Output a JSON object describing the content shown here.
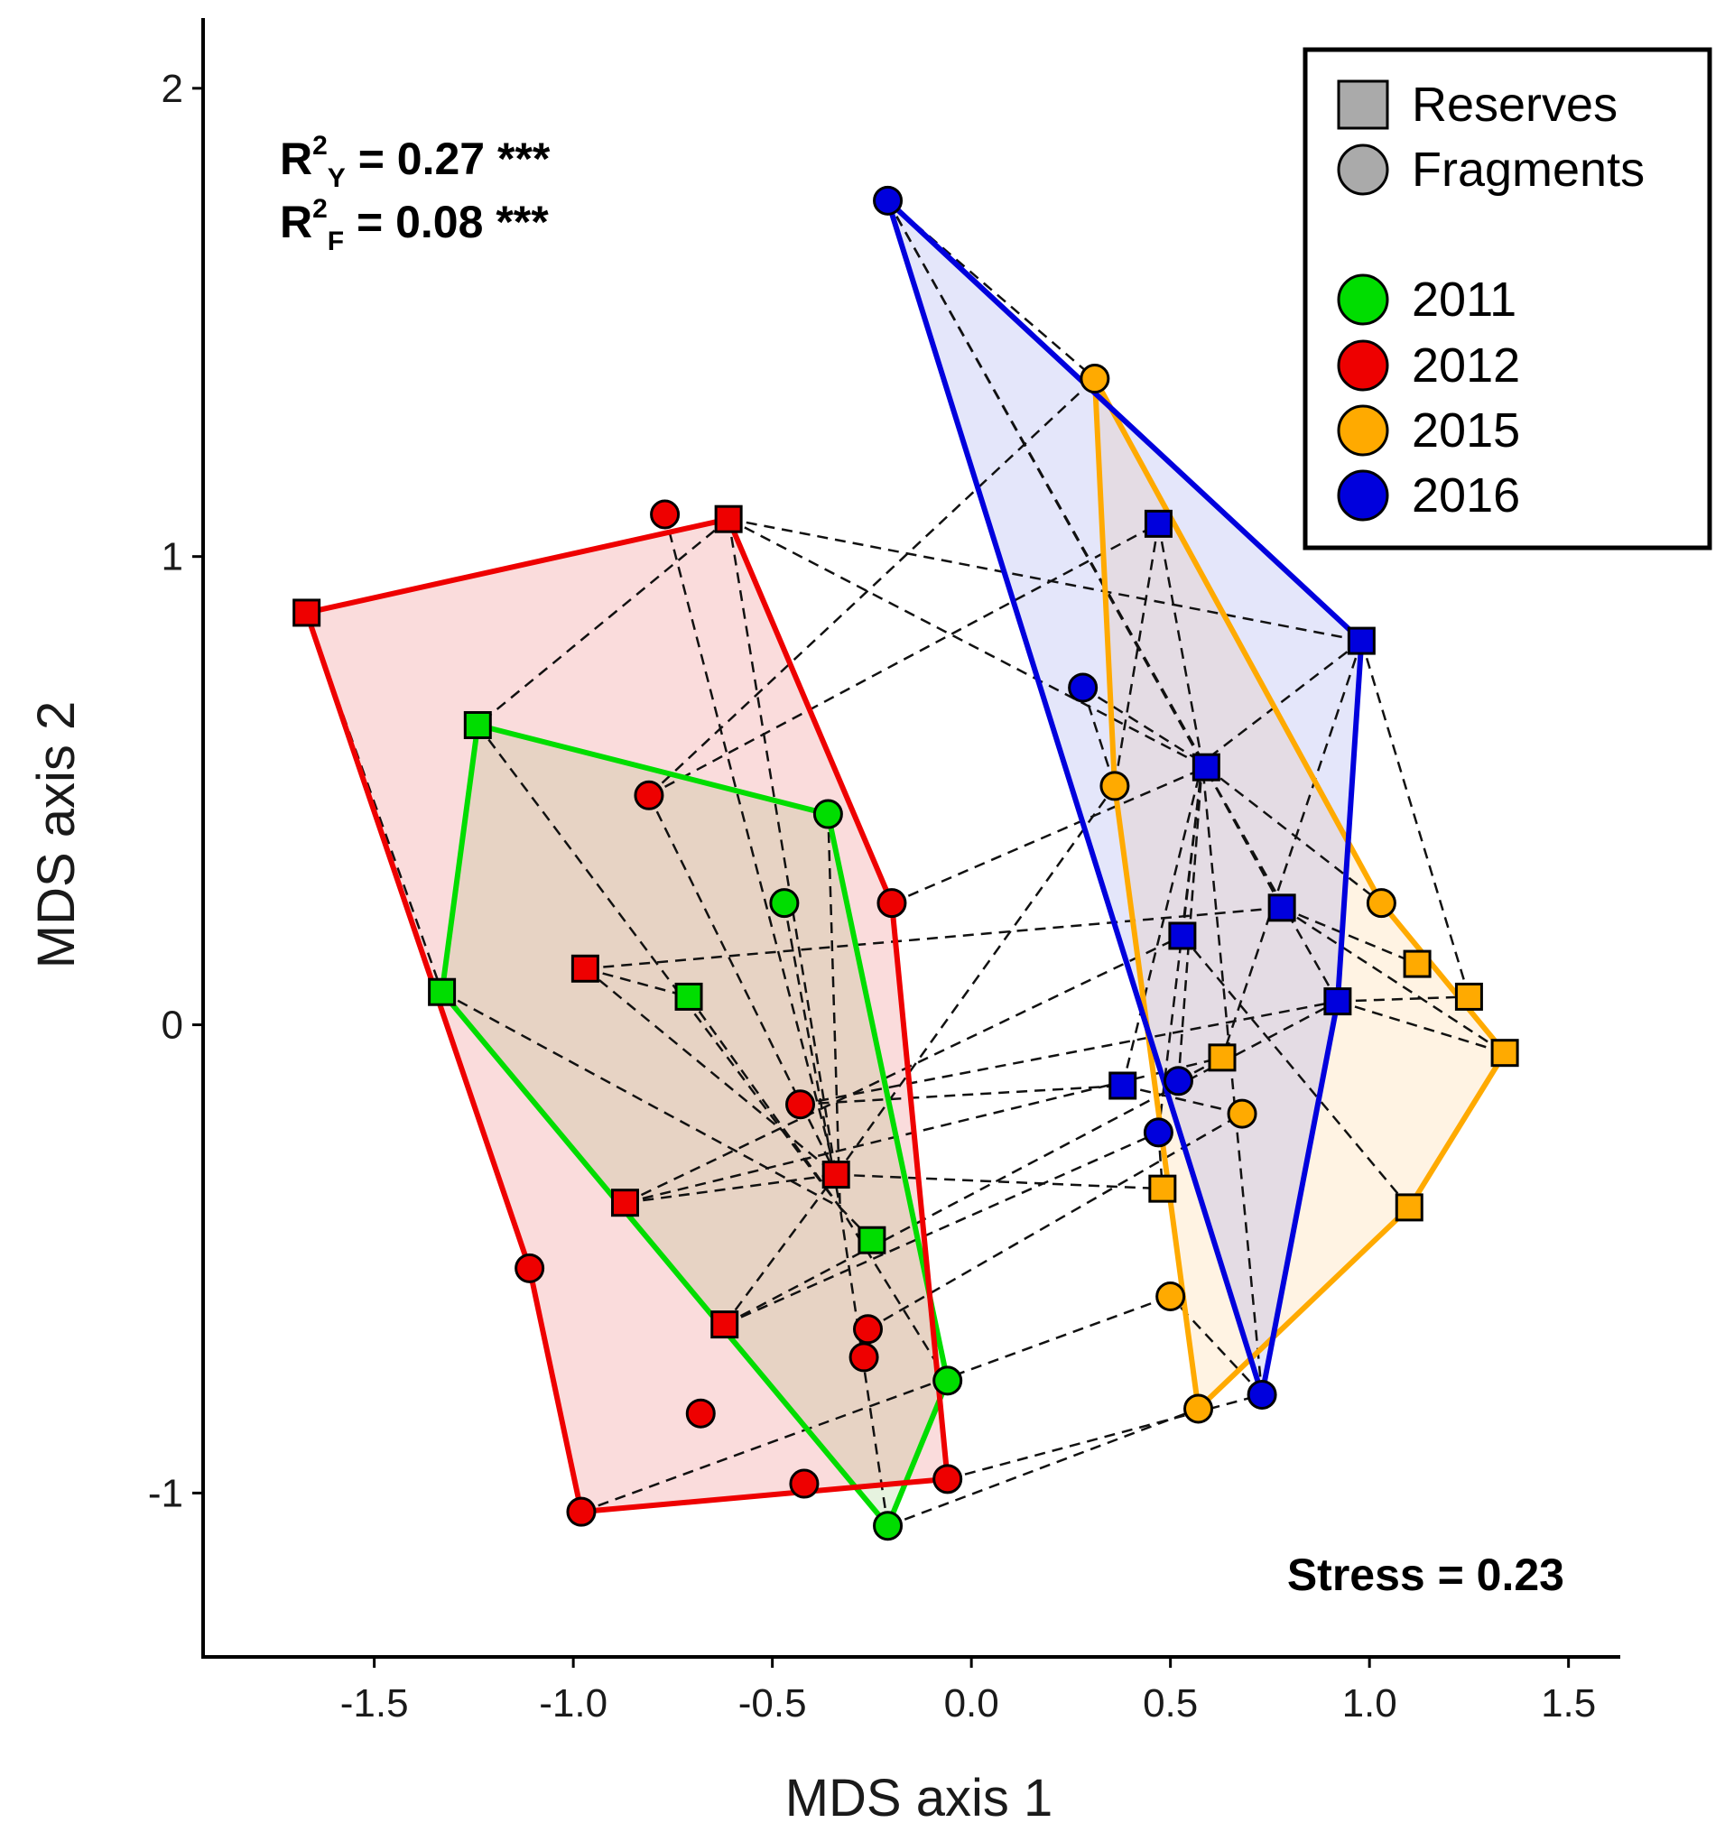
{
  "chart_data": {
    "type": "scatter",
    "xlabel": "MDS axis 1",
    "ylabel": "MDS axis 2",
    "xlim": [
      -1.93,
      1.63
    ],
    "ylim": [
      -1.35,
      2.15
    ],
    "xticks": [
      -1.5,
      -1.0,
      -0.5,
      0.0,
      0.5,
      1.0,
      1.5
    ],
    "xtick_labels": [
      "-1.5",
      "-1.0",
      "-0.5",
      "0.0",
      "0.5",
      "1.0",
      "1.5"
    ],
    "yticks": [
      -1,
      0,
      1,
      2
    ],
    "ytick_labels": [
      "-1",
      "0",
      "1",
      "2"
    ],
    "annotations": {
      "r2y": {
        "base": "R",
        "sup": "2",
        "sub": "Y",
        "rest": " = 0.27 ***"
      },
      "r2f": {
        "base": "R",
        "sup": "2",
        "sub": "F",
        "rest": " = 0.08 ***"
      },
      "stress": "Stress = 0.23"
    },
    "legend": {
      "position": "top-right",
      "shapes": [
        {
          "shape": "square",
          "label": "Reserves"
        },
        {
          "shape": "circle",
          "label": "Fragments"
        }
      ],
      "years": [
        {
          "label": "2011",
          "color": "#00dd00"
        },
        {
          "label": "2012",
          "color": "#ee0000"
        },
        {
          "label": "2015",
          "color": "#ffaa00"
        },
        {
          "label": "2016",
          "color": "#0000dd"
        }
      ]
    },
    "series": [
      {
        "name": "2011",
        "color": "#00dd00",
        "fill": "rgba(140,200,110,0.22)",
        "points": [
          {
            "x": -1.24,
            "y": 0.64,
            "shape": "square"
          },
          {
            "x": -1.33,
            "y": 0.07,
            "shape": "square"
          },
          {
            "x": -0.71,
            "y": 0.06,
            "shape": "square"
          },
          {
            "x": -0.25,
            "y": -0.46,
            "shape": "square"
          },
          {
            "x": -0.36,
            "y": 0.45,
            "shape": "circle"
          },
          {
            "x": -0.47,
            "y": 0.26,
            "shape": "circle"
          },
          {
            "x": -0.06,
            "y": -0.76,
            "shape": "circle"
          },
          {
            "x": -0.21,
            "y": -1.07,
            "shape": "circle"
          }
        ],
        "hull": [
          [
            -1.24,
            0.64
          ],
          [
            -1.33,
            0.07
          ],
          [
            -0.21,
            -1.07
          ],
          [
            -0.06,
            -0.76
          ],
          [
            -0.36,
            0.45
          ]
        ],
        "edges": [
          [
            [
              -1.24,
              0.64
            ],
            [
              -0.33,
              -0.39
            ]
          ],
          [
            [
              -1.33,
              0.07
            ],
            [
              -0.33,
              -0.39
            ]
          ],
          [
            [
              -0.71,
              0.06
            ],
            [
              -0.33,
              -0.39
            ]
          ],
          [
            [
              -0.25,
              -0.46
            ],
            [
              -0.33,
              -0.39
            ]
          ],
          [
            [
              -0.36,
              0.45
            ],
            [
              -0.33,
              -0.39
            ]
          ],
          [
            [
              -0.47,
              0.26
            ],
            [
              -0.33,
              -0.39
            ]
          ],
          [
            [
              -0.06,
              -0.76
            ],
            [
              -0.33,
              -0.39
            ]
          ],
          [
            [
              -0.21,
              -1.07
            ],
            [
              -0.33,
              -0.39
            ]
          ]
        ]
      },
      {
        "name": "2012",
        "color": "#ee0000",
        "fill": "rgba(235,120,120,0.26)",
        "points": [
          {
            "x": -1.67,
            "y": 0.88,
            "shape": "square"
          },
          {
            "x": -0.61,
            "y": 1.08,
            "shape": "square"
          },
          {
            "x": -0.97,
            "y": 0.12,
            "shape": "square"
          },
          {
            "x": -0.87,
            "y": -0.38,
            "shape": "square"
          },
          {
            "x": -0.34,
            "y": -0.32,
            "shape": "square"
          },
          {
            "x": -0.62,
            "y": -0.64,
            "shape": "square"
          },
          {
            "x": -0.77,
            "y": 1.09,
            "shape": "circle"
          },
          {
            "x": -0.81,
            "y": 0.49,
            "shape": "circle"
          },
          {
            "x": -0.2,
            "y": 0.26,
            "shape": "circle"
          },
          {
            "x": -0.43,
            "y": -0.17,
            "shape": "circle"
          },
          {
            "x": -1.11,
            "y": -0.52,
            "shape": "circle"
          },
          {
            "x": -0.26,
            "y": -0.65,
            "shape": "circle"
          },
          {
            "x": -0.27,
            "y": -0.71,
            "shape": "circle"
          },
          {
            "x": -0.68,
            "y": -0.83,
            "shape": "circle"
          },
          {
            "x": -0.42,
            "y": -0.98,
            "shape": "circle"
          },
          {
            "x": -0.06,
            "y": -0.97,
            "shape": "circle"
          },
          {
            "x": -0.98,
            "y": -1.04,
            "shape": "circle"
          }
        ],
        "hull": [
          [
            -1.67,
            0.88
          ],
          [
            -0.61,
            1.08
          ],
          [
            -0.2,
            0.26
          ],
          [
            -0.06,
            -0.97
          ],
          [
            -0.98,
            -1.04
          ],
          [
            -1.11,
            -0.52
          ]
        ],
        "edges": [
          [
            [
              -0.77,
              1.09
            ],
            [
              -0.34,
              -0.32
            ]
          ],
          [
            [
              -0.61,
              1.08
            ],
            [
              -0.34,
              -0.32
            ]
          ],
          [
            [
              -0.81,
              0.49
            ],
            [
              -0.34,
              -0.32
            ]
          ],
          [
            [
              -0.87,
              -0.38
            ],
            [
              -0.34,
              -0.32
            ]
          ],
          [
            [
              -0.97,
              0.12
            ],
            [
              -0.34,
              -0.32
            ]
          ],
          [
            [
              -0.62,
              -0.64
            ],
            [
              -0.34,
              -0.32
            ]
          ],
          [
            [
              -0.34,
              -0.32
            ],
            [
              -0.34,
              -0.32
            ]
          ]
        ]
      },
      {
        "name": "2015",
        "color": "#ffaa00",
        "fill": "rgba(255,205,140,0.24)",
        "points": [
          {
            "x": 0.63,
            "y": -0.07,
            "shape": "square"
          },
          {
            "x": 0.48,
            "y": -0.35,
            "shape": "square"
          },
          {
            "x": 1.1,
            "y": -0.39,
            "shape": "square"
          },
          {
            "x": 1.12,
            "y": 0.13,
            "shape": "square"
          },
          {
            "x": 1.25,
            "y": 0.06,
            "shape": "square"
          },
          {
            "x": 1.34,
            "y": -0.06,
            "shape": "square"
          },
          {
            "x": 0.31,
            "y": 1.38,
            "shape": "circle"
          },
          {
            "x": 0.36,
            "y": 0.51,
            "shape": "circle"
          },
          {
            "x": 1.03,
            "y": 0.26,
            "shape": "circle"
          },
          {
            "x": 0.68,
            "y": -0.19,
            "shape": "circle"
          },
          {
            "x": 0.5,
            "y": -0.58,
            "shape": "circle"
          },
          {
            "x": 0.57,
            "y": -0.82,
            "shape": "circle"
          }
        ],
        "hull": [
          [
            0.31,
            1.38
          ],
          [
            1.03,
            0.26
          ],
          [
            1.34,
            -0.06
          ],
          [
            1.1,
            -0.39
          ],
          [
            0.57,
            -0.82
          ],
          [
            0.36,
            0.51
          ]
        ],
        "edges": []
      },
      {
        "name": "2016",
        "color": "#0000dd",
        "fill": "rgba(130,140,230,0.22)",
        "points": [
          {
            "x": 0.47,
            "y": 1.07,
            "shape": "square"
          },
          {
            "x": 0.98,
            "y": 0.82,
            "shape": "square"
          },
          {
            "x": 0.59,
            "y": 0.55,
            "shape": "square"
          },
          {
            "x": 0.78,
            "y": 0.25,
            "shape": "square"
          },
          {
            "x": 0.53,
            "y": 0.19,
            "shape": "square"
          },
          {
            "x": 0.92,
            "y": 0.05,
            "shape": "square"
          },
          {
            "x": 0.38,
            "y": -0.13,
            "shape": "square"
          },
          {
            "x": -0.21,
            "y": 1.76,
            "shape": "circle"
          },
          {
            "x": 0.28,
            "y": 0.72,
            "shape": "circle"
          },
          {
            "x": 0.52,
            "y": -0.12,
            "shape": "circle"
          },
          {
            "x": 0.47,
            "y": -0.23,
            "shape": "circle"
          },
          {
            "x": 0.73,
            "y": -0.79,
            "shape": "circle"
          }
        ],
        "hull": [
          [
            -0.21,
            1.76
          ],
          [
            0.98,
            0.82
          ],
          [
            0.92,
            0.05
          ],
          [
            0.73,
            -0.79
          ]
        ],
        "edges": [
          [
            [
              -0.21,
              1.76
            ],
            [
              0.58,
              0.56
            ]
          ],
          [
            [
              0.47,
              1.07
            ],
            [
              0.58,
              0.56
            ]
          ],
          [
            [
              0.98,
              0.82
            ],
            [
              0.58,
              0.56
            ]
          ],
          [
            [
              0.28,
              0.72
            ],
            [
              0.58,
              0.56
            ]
          ],
          [
            [
              0.78,
              0.25
            ],
            [
              0.58,
              0.56
            ]
          ],
          [
            [
              0.53,
              0.19
            ],
            [
              0.58,
              0.56
            ]
          ],
          [
            [
              0.92,
              0.05
            ],
            [
              0.58,
              0.56
            ]
          ],
          [
            [
              0.38,
              -0.13
            ],
            [
              0.58,
              0.56
            ]
          ],
          [
            [
              0.52,
              -0.12
            ],
            [
              0.58,
              0.56
            ]
          ],
          [
            [
              0.47,
              -0.23
            ],
            [
              0.58,
              0.56
            ]
          ],
          [
            [
              0.73,
              -0.79
            ],
            [
              0.58,
              0.56
            ]
          ]
        ]
      }
    ],
    "connectors": [
      [
        [
          -1.67,
          0.88
        ],
        [
          -1.33,
          0.07
        ]
      ],
      [
        [
          -0.61,
          1.08
        ],
        [
          -1.24,
          0.64
        ]
      ],
      [
        [
          -0.61,
          1.08
        ],
        [
          0.59,
          0.55
        ]
      ],
      [
        [
          -0.61,
          1.08
        ],
        [
          0.98,
          0.82
        ]
      ],
      [
        [
          -0.81,
          0.49
        ],
        [
          0.31,
          1.38
        ]
      ],
      [
        [
          -0.81,
          0.49
        ],
        [
          0.47,
          1.07
        ]
      ],
      [
        [
          -0.97,
          0.12
        ],
        [
          -0.71,
          0.06
        ]
      ],
      [
        [
          -0.97,
          0.12
        ],
        [
          0.78,
          0.25
        ]
      ],
      [
        [
          -0.87,
          -0.38
        ],
        [
          0.53,
          0.19
        ]
      ],
      [
        [
          -0.87,
          -0.38
        ],
        [
          0.63,
          -0.07
        ]
      ],
      [
        [
          -0.43,
          -0.17
        ],
        [
          0.38,
          -0.13
        ]
      ],
      [
        [
          -0.43,
          -0.17
        ],
        [
          0.92,
          0.05
        ]
      ],
      [
        [
          -0.34,
          -0.32
        ],
        [
          0.36,
          0.51
        ]
      ],
      [
        [
          -0.34,
          -0.32
        ],
        [
          0.48,
          -0.35
        ]
      ],
      [
        [
          -0.62,
          -0.64
        ],
        [
          0.47,
          -0.23
        ]
      ],
      [
        [
          -0.62,
          -0.64
        ],
        [
          0.92,
          0.05
        ]
      ],
      [
        [
          -0.26,
          -0.65
        ],
        [
          0.68,
          -0.19
        ]
      ],
      [
        [
          -0.98,
          -1.04
        ],
        [
          0.5,
          -0.58
        ]
      ],
      [
        [
          -0.21,
          -1.07
        ],
        [
          0.57,
          -0.82
        ]
      ],
      [
        [
          -0.06,
          -0.97
        ],
        [
          0.73,
          -0.79
        ]
      ],
      [
        [
          -0.21,
          1.76
        ],
        [
          0.31,
          1.38
        ]
      ],
      [
        [
          0.47,
          1.07
        ],
        [
          0.36,
          0.51
        ]
      ],
      [
        [
          0.98,
          0.82
        ],
        [
          1.25,
          0.06
        ]
      ],
      [
        [
          0.98,
          0.82
        ],
        [
          0.63,
          -0.07
        ]
      ],
      [
        [
          0.59,
          0.55
        ],
        [
          1.03,
          0.26
        ]
      ],
      [
        [
          0.78,
          0.25
        ],
        [
          1.12,
          0.13
        ]
      ],
      [
        [
          0.78,
          0.25
        ],
        [
          1.34,
          -0.06
        ]
      ],
      [
        [
          0.92,
          0.05
        ],
        [
          1.34,
          -0.06
        ]
      ],
      [
        [
          0.92,
          0.05
        ],
        [
          1.25,
          0.06
        ]
      ],
      [
        [
          0.53,
          0.19
        ],
        [
          1.1,
          -0.39
        ]
      ],
      [
        [
          0.38,
          -0.13
        ],
        [
          0.68,
          -0.19
        ]
      ],
      [
        [
          0.47,
          -0.23
        ],
        [
          0.48,
          -0.35
        ]
      ],
      [
        [
          0.52,
          -0.12
        ],
        [
          0.63,
          -0.07
        ]
      ],
      [
        [
          0.73,
          -0.79
        ],
        [
          0.5,
          -0.58
        ]
      ],
      [
        [
          0.28,
          0.72
        ],
        [
          0.36,
          0.51
        ]
      ],
      [
        [
          -0.21,
          1.76
        ],
        [
          0.59,
          0.55
        ]
      ],
      [
        [
          -0.2,
          0.26
        ],
        [
          0.59,
          0.55
        ]
      ]
    ]
  }
}
